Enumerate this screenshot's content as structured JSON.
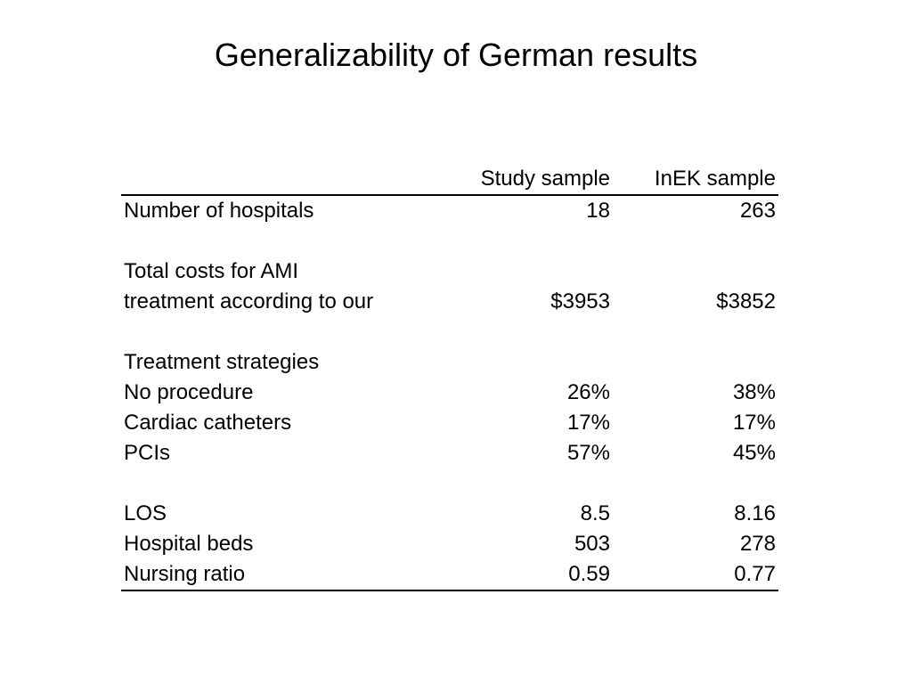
{
  "title": "Generalizability of German results",
  "table": {
    "headers": [
      "",
      "Study sample",
      "InEK sample"
    ],
    "rows": [
      {
        "label": "Number of hospitals",
        "study": "18",
        "inek": "263"
      },
      {
        "label": "",
        "study": "",
        "inek": ""
      },
      {
        "label": "Total costs for AMI",
        "study": "",
        "inek": ""
      },
      {
        "label": "treatment according to our",
        "study": "$3953",
        "inek": "$3852"
      },
      {
        "label": "",
        "study": "",
        "inek": ""
      },
      {
        "label": "Treatment strategies",
        "study": "",
        "inek": ""
      },
      {
        "label": "No procedure",
        "study": "26%",
        "inek": "38%"
      },
      {
        "label": "Cardiac catheters",
        "study": "17%",
        "inek": "17%"
      },
      {
        "label": "PCIs",
        "study": "57%",
        "inek": "45%"
      },
      {
        "label": "",
        "study": "",
        "inek": ""
      },
      {
        "label": "LOS",
        "study": "8.5",
        "inek": "8.16"
      },
      {
        "label": "Hospital beds",
        "study": "503",
        "inek": "278"
      },
      {
        "label": "Nursing ratio",
        "study": "0.59",
        "inek": "0.77"
      }
    ]
  }
}
